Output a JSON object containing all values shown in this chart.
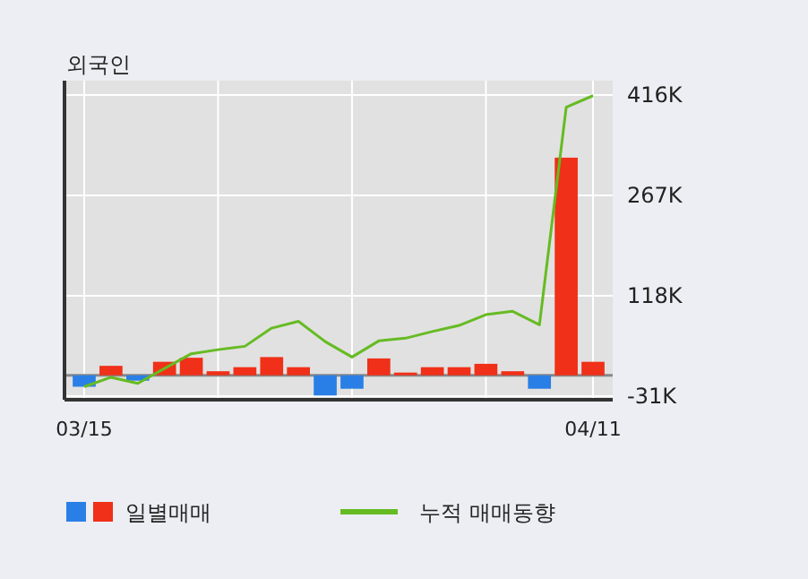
{
  "chart_data": {
    "type": "bar",
    "title": "외국인",
    "categories": [
      "03/15",
      null,
      null,
      null,
      null,
      null,
      null,
      null,
      null,
      null,
      null,
      null,
      null,
      null,
      null,
      null,
      null,
      null,
      null,
      "04/11"
    ],
    "series": [
      {
        "name": "일별매매",
        "colors": [
          "#2a7fe6",
          "#f03018",
          "#2a7fe6",
          "#f03018",
          "#f03018",
          "#f03018",
          "#f03018",
          "#f03018",
          "#f03018",
          "#2a7fe6",
          "#2a7fe6",
          "#f03018",
          "#f03018",
          "#f03018",
          "#f03018",
          "#f03018",
          "#f03018",
          "#2a7fe6",
          "#f03018",
          "#f03018"
        ],
        "values": [
          -17,
          14,
          -8,
          20,
          26,
          6,
          12,
          27,
          12,
          -30,
          -20,
          25,
          4,
          12,
          12,
          17,
          6,
          -20,
          323,
          20
        ]
      },
      {
        "name": "누적 매매동향",
        "type": "line",
        "color": "#66bb22",
        "values": [
          -17,
          -3,
          -12,
          10,
          32,
          38,
          43,
          70,
          80,
          50,
          27,
          51,
          55,
          65,
          74,
          90,
          95,
          75,
          398,
          415
        ]
      }
    ],
    "ylim": [
      -31,
      416
    ],
    "yticks": [
      {
        "value": -31,
        "label": "-31K"
      },
      {
        "value": 118,
        "label": "118K"
      },
      {
        "value": 267,
        "label": "267K"
      },
      {
        "value": 416,
        "label": "416K"
      }
    ],
    "grid": true,
    "legend": "bottom"
  }
}
